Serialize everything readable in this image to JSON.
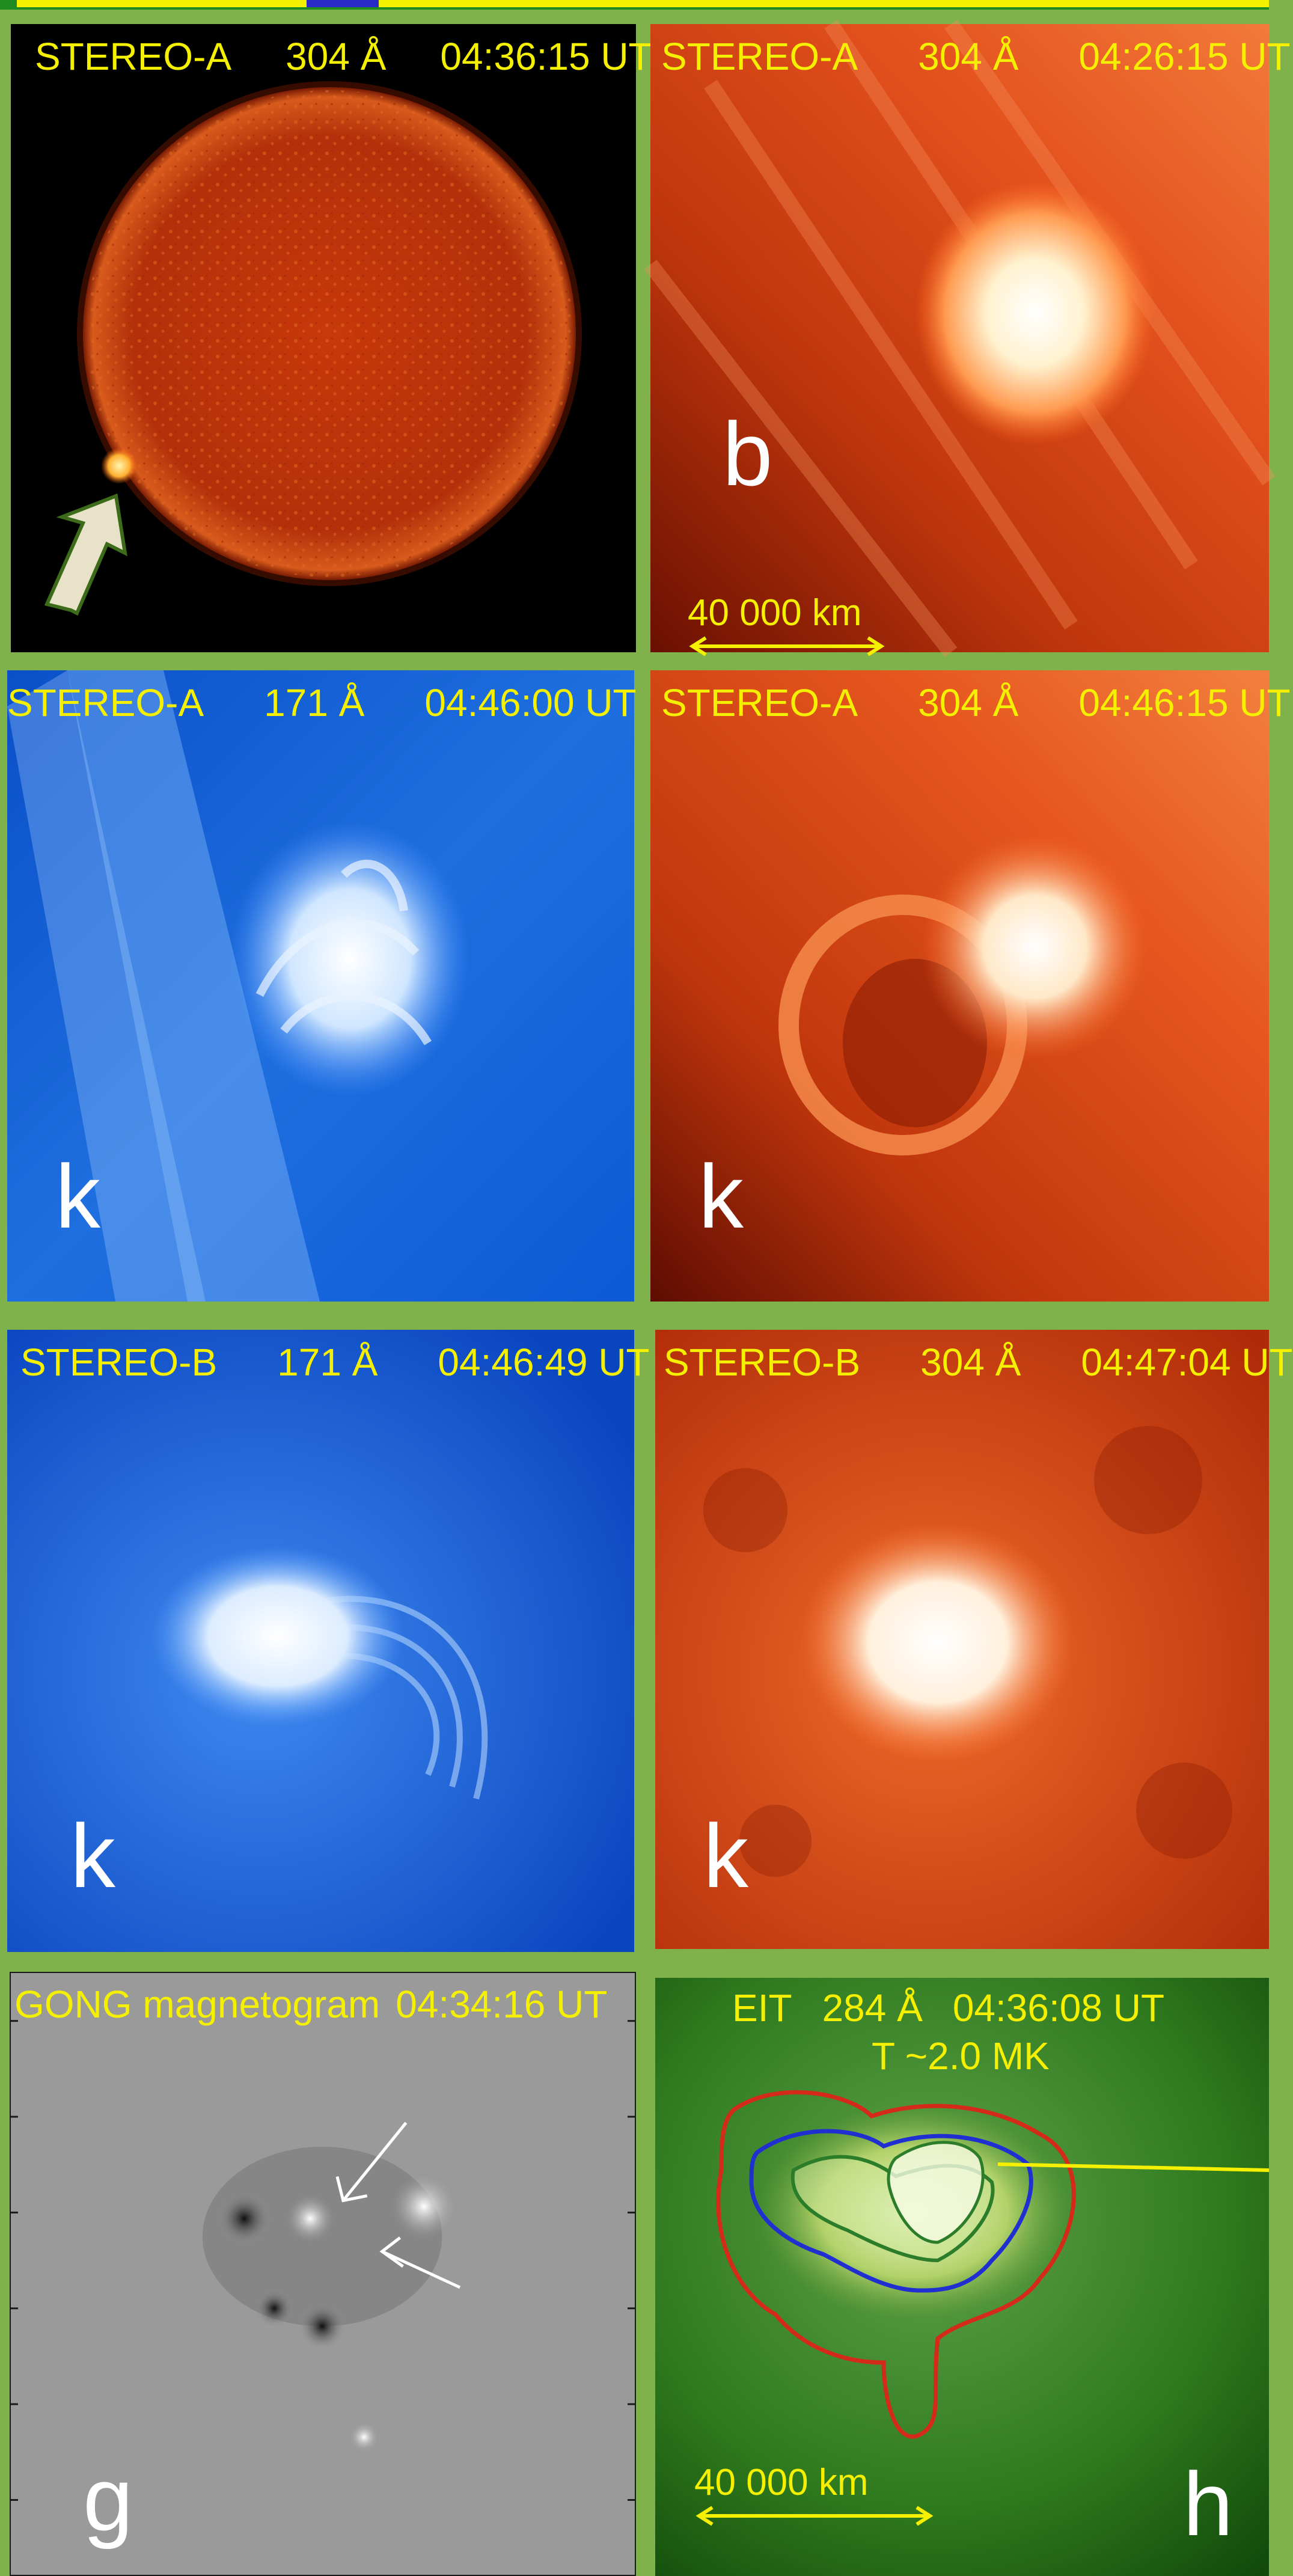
{
  "panels": [
    {
      "id": "a",
      "instrument": "STEREO-A",
      "wavelength": "304 Å",
      "time": "04:36:15 UT",
      "letter": ""
    },
    {
      "id": "b",
      "instrument": "STEREO-A",
      "wavelength": "304 Å",
      "time": "04:26:15 UT",
      "letter": "b",
      "scalebar": "40 000 km"
    },
    {
      "id": "c",
      "instrument": "STEREO-A",
      "wavelength": "171 Å",
      "time": "04:46:00 UT",
      "letter": "k"
    },
    {
      "id": "d",
      "instrument": "STEREO-A",
      "wavelength": "304 Å",
      "time": "04:46:15 UT",
      "letter": "k"
    },
    {
      "id": "e",
      "instrument": "STEREO-B",
      "wavelength": "171 Å",
      "time": "04:46:49 UT",
      "letter": "k"
    },
    {
      "id": "f",
      "instrument": "STEREO-B",
      "wavelength": "304 Å",
      "time": "04:47:04 UT",
      "letter": "k"
    },
    {
      "id": "g",
      "instrument": "GONG magnetogram",
      "wavelength": "",
      "time": "04:34:16 UT",
      "letter": "g"
    },
    {
      "id": "h",
      "instrument": "EIT",
      "wavelength": "284 Å",
      "time": "04:36:08 UT",
      "subtitle": "T ~2.0 MK",
      "letter": "h",
      "scalebar": "40 000 km"
    }
  ],
  "colors": {
    "frame": "#7fb24a",
    "label_yellow": "#f4f000",
    "he304": "#e2461a",
    "fe171": "#1f6fe0",
    "eit284": "#2f7a1e",
    "gong": "#9a9a9a",
    "contour_red": "#d42a1a",
    "contour_blue": "#1f2fd0",
    "contour_green": "#2c7d2a"
  }
}
